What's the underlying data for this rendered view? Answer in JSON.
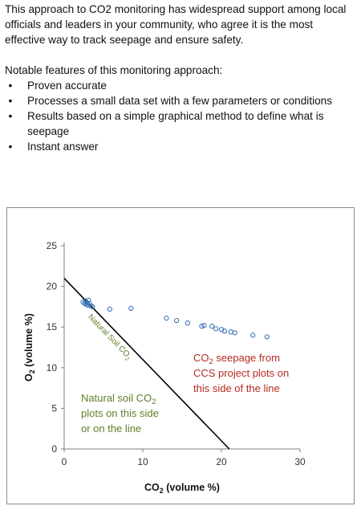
{
  "intro": {
    "paragraph": "This approach to CO2 monitoring has widespread support among local officials and leaders in your community, who agree it is the most effective way to track seepage and ensure safety.",
    "features_heading": "Notable features of this monitoring approach:",
    "features": [
      "Proven accurate",
      "Processes a small data set with a few parameters or conditions",
      "Results based on a simple graphical method to define what is seepage",
      "Instant answer"
    ],
    "bullet_glyph": "•"
  },
  "chart_data": {
    "type": "scatter",
    "xlabel": {
      "base": "CO",
      "sub": "2",
      "rest": " (volume %)"
    },
    "ylabel": {
      "base": "O",
      "sub": "2",
      "rest": " (volume %)"
    },
    "xlim": [
      0,
      30
    ],
    "ylim": [
      0,
      25
    ],
    "xticks": [
      0,
      10,
      20,
      30
    ],
    "yticks": [
      0,
      5,
      10,
      15,
      20,
      25
    ],
    "grid": false,
    "series": [
      {
        "marker": "open-circle",
        "color": "#3b73b9",
        "points": [
          [
            2.4,
            18.1
          ],
          [
            2.6,
            17.9
          ],
          [
            2.7,
            18.2
          ],
          [
            2.8,
            17.8
          ],
          [
            2.9,
            18.0
          ],
          [
            3.0,
            17.7
          ],
          [
            3.1,
            18.3
          ],
          [
            3.2,
            17.9
          ],
          [
            3.4,
            17.6
          ],
          [
            3.6,
            17.5
          ],
          [
            5.8,
            17.2
          ],
          [
            8.5,
            17.3
          ],
          [
            13.0,
            16.1
          ],
          [
            14.3,
            15.8
          ],
          [
            15.7,
            15.5
          ],
          [
            17.5,
            15.1
          ],
          [
            17.8,
            15.2
          ],
          [
            18.8,
            15.1
          ],
          [
            19.3,
            14.8
          ],
          [
            20.0,
            14.7
          ],
          [
            20.4,
            14.5
          ],
          [
            21.2,
            14.4
          ],
          [
            21.7,
            14.3
          ],
          [
            24.0,
            14.0
          ],
          [
            25.8,
            13.8
          ]
        ]
      }
    ],
    "reference_line": {
      "from": [
        0,
        21
      ],
      "to": [
        21,
        0
      ],
      "color": "#000000",
      "label": {
        "base": "Natural Soil CO",
        "sub": "2"
      },
      "label_color": "#5f7f2a"
    },
    "annotations": {
      "natural": {
        "lines": [
          {
            "base": "Natural soil CO",
            "sub": "2"
          },
          {
            "base": "plots on this side"
          },
          {
            "base": "or on the line"
          }
        ],
        "color": "#5f7f2a"
      },
      "seepage": {
        "lines": [
          {
            "base": "CO",
            "sub": "2",
            "rest": " seepage from"
          },
          {
            "base": "CCS project plots on"
          },
          {
            "base": "this side of the line"
          }
        ],
        "color": "#b52a20"
      }
    }
  }
}
